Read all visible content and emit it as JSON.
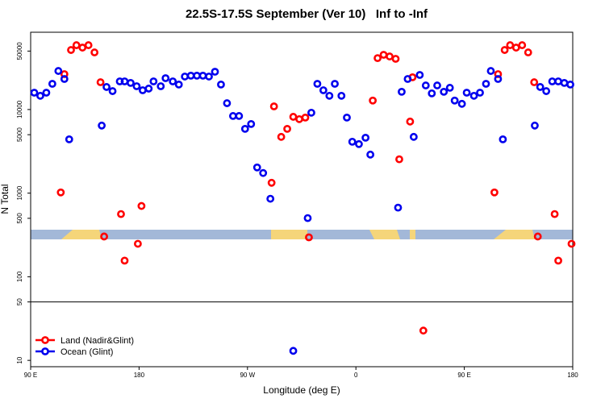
{
  "chart_data": {
    "type": "scatter",
    "title": "22.5S-17.5S September (Ver 10)   Inf to -Inf",
    "x_label": "Longitude (deg E)",
    "y_label": "N Total",
    "xlim": [
      90,
      540
    ],
    "xticks": [
      {
        "value": 90,
        "label": "90 E"
      },
      {
        "value": 180,
        "label": "180"
      },
      {
        "value": 270,
        "label": "90 W"
      },
      {
        "value": 360,
        "label": "0"
      },
      {
        "value": 450,
        "label": "90 E"
      },
      {
        "value": 540,
        "label": "180"
      }
    ],
    "ylim": [
      8.4,
      84000
    ],
    "yticks": [
      10,
      50,
      100,
      500,
      1000,
      5000,
      10000,
      50000
    ],
    "y_log": true,
    "hline": 50,
    "legend": "lower left",
    "series": [
      {
        "name": "Land (Nadir&Glint)",
        "color": "#ff0000",
        "x": [
          115,
          118,
          123.5,
          128,
          133,
          138,
          143,
          148,
          151,
          165,
          168,
          179,
          182,
          290,
          292,
          298,
          303,
          308,
          313,
          318,
          321,
          374,
          378,
          383,
          388,
          393,
          396,
          405,
          407,
          416,
          475,
          478,
          483.5,
          488,
          493,
          498,
          503,
          508,
          511,
          525,
          528,
          539
        ],
        "values": [
          1020,
          26500,
          51500,
          58800,
          55000,
          58800,
          48200,
          21200,
          303,
          562,
          156,
          248,
          702,
          1330,
          10900,
          4710,
          5870,
          8180,
          7670,
          8010,
          296,
          12800,
          41200,
          45100,
          43100,
          40400,
          2540,
          7180,
          24300,
          22.7,
          1020,
          26500,
          51500,
          58800,
          55000,
          58800,
          48200,
          21200,
          303,
          562,
          156,
          248
        ]
      },
      {
        "name": "Ocean (Glint)",
        "color": "#0000ee",
        "x": [
          93,
          98,
          103,
          108,
          113,
          118,
          122,
          149,
          153,
          158,
          164,
          168,
          173,
          178,
          183,
          188,
          192,
          198,
          202,
          208,
          213,
          218,
          223,
          228,
          233,
          238,
          243,
          248,
          253,
          258,
          263,
          268,
          273,
          278,
          283,
          289,
          308,
          320,
          323,
          328,
          333,
          338,
          342.5,
          348,
          352.5,
          357,
          362.5,
          368,
          372,
          395,
          398,
          403,
          408,
          413,
          418,
          423,
          427.5,
          433,
          438,
          442,
          448,
          452,
          458,
          463,
          468,
          472,
          478,
          482,
          508.5,
          513,
          518,
          523,
          528,
          533,
          538
        ],
        "values": [
          15900,
          14600,
          15900,
          20300,
          28900,
          23200,
          4400,
          6430,
          18600,
          16600,
          21700,
          21700,
          20800,
          19000,
          17000,
          17800,
          21700,
          19000,
          23700,
          21700,
          19900,
          24800,
          25400,
          25400,
          25400,
          24800,
          28300,
          19900,
          11900,
          8370,
          8370,
          5870,
          6710,
          2030,
          1740,
          857,
          13.0,
          503,
          9160,
          20300,
          17000,
          14600,
          20300,
          14600,
          8010,
          4120,
          3860,
          4600,
          2890,
          671,
          16300,
          23200,
          4710,
          25900,
          19400,
          15600,
          19400,
          16300,
          18200,
          12800,
          11700,
          15900,
          14600,
          15900,
          20300,
          28900,
          23200,
          4400,
          6430,
          18600,
          16600,
          21700,
          21700,
          20800,
          19900
        ]
      }
    ]
  }
}
